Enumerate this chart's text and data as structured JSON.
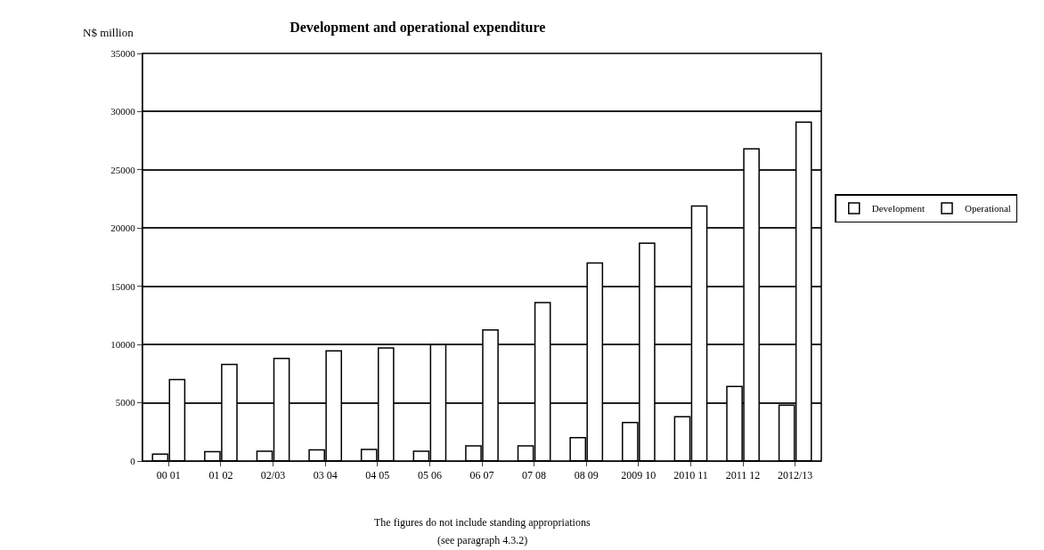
{
  "chart_data": {
    "type": "bar",
    "title": "Development and operational expenditure",
    "ylabel": "N$ million",
    "categories": [
      "00 01",
      "01 02",
      "02/03",
      "03 04",
      "04 05",
      "05 06",
      "06 07",
      "07 08",
      "08 09",
      "2009 10",
      "2010 11",
      "2011 12",
      "2012/13"
    ],
    "series": [
      {
        "name": "Development",
        "color": "#ffffff",
        "values": [
          600,
          800,
          850,
          950,
          1000,
          850,
          1300,
          1300,
          2000,
          3300,
          3800,
          6400,
          4800
        ]
      },
      {
        "name": "Operational",
        "color": "#ffffff",
        "values": [
          7000,
          8300,
          8800,
          9450,
          9700,
          10000,
          11250,
          13600,
          17000,
          18700,
          21900,
          26800,
          29100
        ]
      }
    ],
    "ylim": [
      0,
      35000
    ],
    "yticks": [
      0,
      5000,
      10000,
      15000,
      20000,
      25000,
      30000,
      35000
    ],
    "grid": "y",
    "legend": "right",
    "annotations": [
      "The figures do not include standing appropriations",
      "(see paragraph 4.3.2)"
    ]
  }
}
